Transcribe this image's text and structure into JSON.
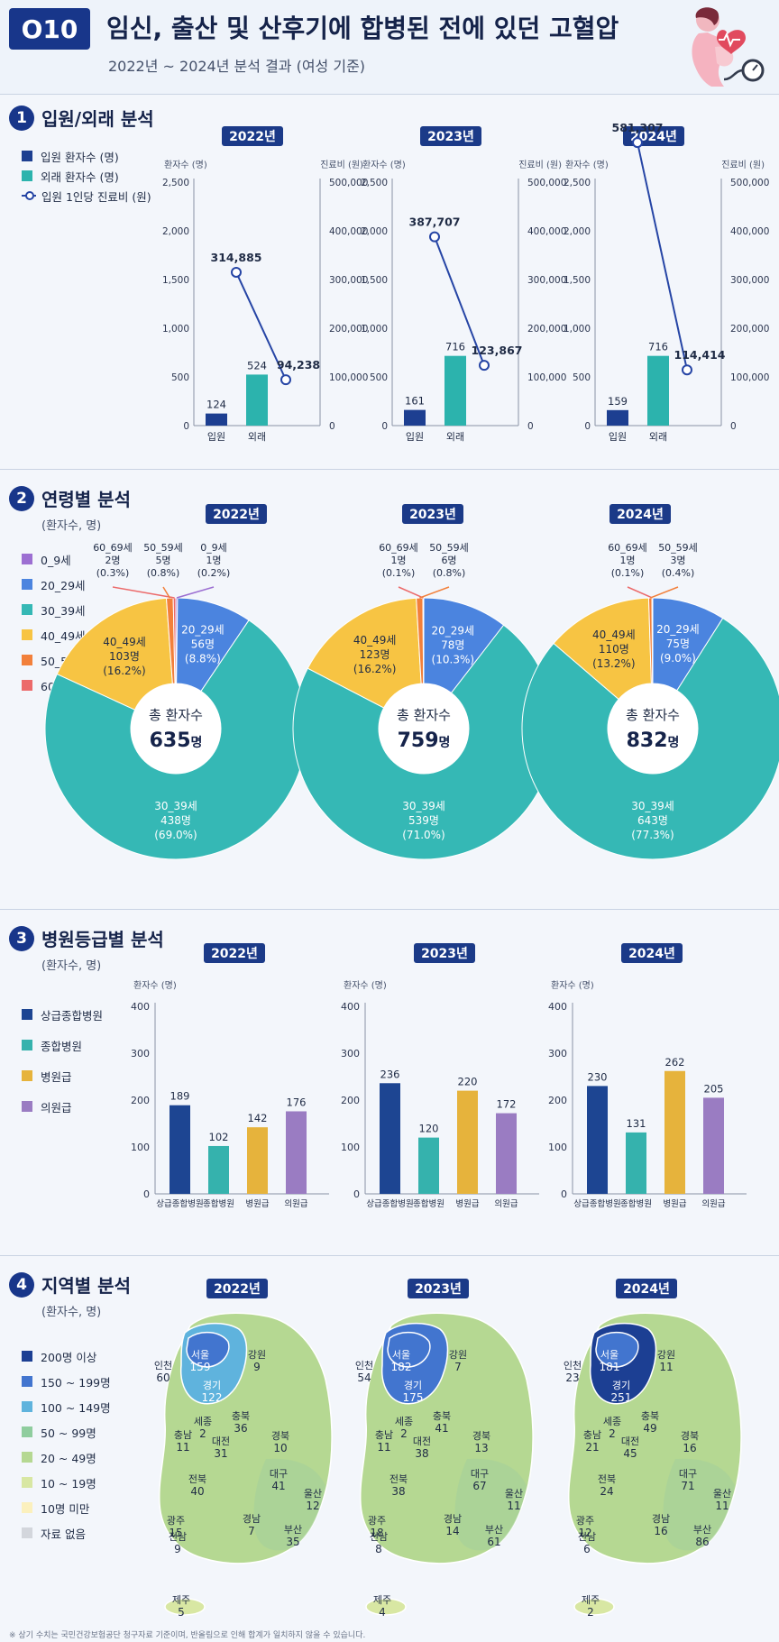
{
  "header": {
    "code": "O10",
    "title": "임신, 출산 및 산후기에 합병된 전에 있던 고혈압",
    "subtitle": "2022년 ~ 2024년 분석 결과 (여성 기준)"
  },
  "sections": {
    "s1": {
      "num": "1",
      "title": "입원/외래 분석"
    },
    "s2": {
      "num": "2",
      "title": "연령별 분석",
      "unit": "(환자수, 명)"
    },
    "s3": {
      "num": "3",
      "title": "병원등급별 분석",
      "unit": "(환자수, 명)"
    },
    "s4": {
      "num": "4",
      "title": "지역별 분석",
      "unit": "(환자수, 명)"
    }
  },
  "legend1": [
    {
      "label": "입원 환자수 (명)",
      "color": "#1d3f91",
      "kind": "box"
    },
    {
      "label": "외래 환자수 (명)",
      "color": "#2cb3ad",
      "kind": "box"
    },
    {
      "label": "입원 1인당 진료비 (원)",
      "color": "#2645a5",
      "kind": "line"
    }
  ],
  "legend2": [
    {
      "label": "0_9세",
      "color": "#9c6fd2"
    },
    {
      "label": "20_29세",
      "color": "#4b84df"
    },
    {
      "label": "30_39세",
      "color": "#35b8b5"
    },
    {
      "label": "40_49세",
      "color": "#f7c443"
    },
    {
      "label": "50_59세",
      "color": "#f2803b"
    },
    {
      "label": "60_69세",
      "color": "#ec6a6a"
    }
  ],
  "legend3": [
    {
      "label": "상급종합병원",
      "color": "#1d4592"
    },
    {
      "label": "종합병원",
      "color": "#35b2ad"
    },
    {
      "label": "병원급",
      "color": "#e6b33c"
    },
    {
      "label": "의원급",
      "color": "#9a7cc2"
    }
  ],
  "legend4": [
    {
      "label": "200명 이상",
      "color": "#1c3f93"
    },
    {
      "label": "150 ~ 199명",
      "color": "#4275cf"
    },
    {
      "label": "100 ~ 149명",
      "color": "#5fb3dd"
    },
    {
      "label": "50 ~ 99명",
      "color": "#8fcd9e"
    },
    {
      "label": "20 ~ 49명",
      "color": "#b5d892"
    },
    {
      "label": "10 ~ 19명",
      "color": "#d8e7a3"
    },
    {
      "label": "10명 미만",
      "color": "#fbf0bd"
    },
    {
      "label": "자료 없음",
      "color": "#d3d6dc"
    }
  ],
  "chart_data": [
    {
      "type": "bar",
      "section": "입원/외래 분석",
      "years": [
        "2022년",
        "2023년",
        "2024년"
      ],
      "categories": [
        "입원",
        "외래"
      ],
      "ylabel_left": "환자수 (명)",
      "ylabel_right": "진료비 (원)",
      "ylim_left": [
        0,
        2500
      ],
      "ylim_right": [
        0,
        500000
      ],
      "yticks_left": [
        "0",
        "500",
        "1,000",
        "1,500",
        "2,000",
        "2,500"
      ],
      "yticks_right": [
        "0",
        "100,000",
        "200,000",
        "300,000",
        "400,000",
        "500,000"
      ],
      "patients": [
        [
          124,
          524
        ],
        [
          161,
          716
        ],
        [
          159,
          716
        ]
      ],
      "patient_labels": [
        [
          "124",
          "524"
        ],
        [
          "161",
          "716"
        ],
        [
          "159",
          "716"
        ]
      ],
      "cost": [
        [
          314885,
          94238
        ],
        [
          387707,
          123867
        ],
        [
          581307,
          114414
        ]
      ],
      "cost_labels": [
        [
          "314,885",
          "94,238"
        ],
        [
          "387,707",
          "123,867"
        ],
        [
          "581,307",
          "114,414"
        ]
      ]
    },
    {
      "type": "pie",
      "section": "연령별 분석",
      "years": [
        "2022년",
        "2023년",
        "2024년"
      ],
      "center_label": "총 환자수",
      "totals": [
        "635",
        "759",
        "832"
      ],
      "total_unit": "명",
      "slices": [
        [
          {
            "age": "0_9세",
            "count": "1명",
            "pct": "(0.2%)",
            "value": 0.2
          },
          {
            "age": "20_29세",
            "count": "56명",
            "pct": "(8.8%)",
            "value": 8.8
          },
          {
            "age": "30_39세",
            "count": "438명",
            "pct": "(69.0%)",
            "value": 69.0
          },
          {
            "age": "40_49세",
            "count": "103명",
            "pct": "(16.2%)",
            "value": 16.2
          },
          {
            "age": "50_59세",
            "count": "5명",
            "pct": "(0.8%)",
            "value": 0.8
          },
          {
            "age": "60_69세",
            "count": "2명",
            "pct": "(0.3%)",
            "value": 0.3
          }
        ],
        [
          {
            "age": "20_29세",
            "count": "78명",
            "pct": "(10.3%)",
            "value": 10.3
          },
          {
            "age": "30_39세",
            "count": "539명",
            "pct": "(71.0%)",
            "value": 71.0
          },
          {
            "age": "40_49세",
            "count": "123명",
            "pct": "(16.2%)",
            "value": 16.2
          },
          {
            "age": "50_59세",
            "count": "6명",
            "pct": "(0.8%)",
            "value": 0.8
          },
          {
            "age": "60_69세",
            "count": "1명",
            "pct": "(0.1%)",
            "value": 0.1
          }
        ],
        [
          {
            "age": "20_29세",
            "count": "75명",
            "pct": "(9.0%)",
            "value": 9.0
          },
          {
            "age": "30_39세",
            "count": "643명",
            "pct": "(77.3%)",
            "value": 77.3
          },
          {
            "age": "40_49세",
            "count": "110명",
            "pct": "(13.2%)",
            "value": 13.2
          },
          {
            "age": "50_59세",
            "count": "3명",
            "pct": "(0.4%)",
            "value": 0.4
          },
          {
            "age": "60_69세",
            "count": "1명",
            "pct": "(0.1%)",
            "value": 0.1
          }
        ]
      ]
    },
    {
      "type": "bar",
      "section": "병원등급별 분석",
      "years": [
        "2022년",
        "2023년",
        "2024년"
      ],
      "ylabel": "환자수 (명)",
      "ylim": [
        0,
        400
      ],
      "yticks": [
        "0",
        "100",
        "200",
        "300",
        "400"
      ],
      "categories": [
        "상급종합병원",
        "종합병원",
        "병원급",
        "의원급"
      ],
      "values": [
        [
          189,
          102,
          142,
          176
        ],
        [
          236,
          120,
          220,
          172
        ],
        [
          230,
          131,
          262,
          205
        ]
      ]
    },
    {
      "type": "map",
      "section": "지역별 분석",
      "years": [
        "2022년",
        "2023년",
        "2024년"
      ],
      "regions": [
        [
          {
            "name": "서울",
            "value": "159",
            "color": "#4275cf"
          },
          {
            "name": "경기",
            "value": "122",
            "color": "#5fb3dd"
          },
          {
            "name": "인천",
            "value": "60",
            "color": "#8fcd9e"
          },
          {
            "name": "강원",
            "value": "9",
            "color": "#fbf0bd"
          },
          {
            "name": "세종",
            "value": "2",
            "color": "#fbf0bd"
          },
          {
            "name": "충북",
            "value": "36",
            "color": "#b5d892"
          },
          {
            "name": "충남",
            "value": "11",
            "color": "#d8e7a3"
          },
          {
            "name": "대전",
            "value": "31",
            "color": "#b5d892"
          },
          {
            "name": "경북",
            "value": "10",
            "color": "#d8e7a3"
          },
          {
            "name": "전북",
            "value": "40",
            "color": "#b5d892"
          },
          {
            "name": "대구",
            "value": "41",
            "color": "#b5d892"
          },
          {
            "name": "울산",
            "value": "12",
            "color": "#d8e7a3"
          },
          {
            "name": "광주",
            "value": "15",
            "color": "#d8e7a3"
          },
          {
            "name": "경남",
            "value": "7",
            "color": "#fbf0bd"
          },
          {
            "name": "부산",
            "value": "35",
            "color": "#b5d892"
          },
          {
            "name": "전남",
            "value": "9",
            "color": "#fbf0bd"
          },
          {
            "name": "제주",
            "value": "5",
            "color": "#fbf0bd"
          }
        ],
        [
          {
            "name": "서울",
            "value": "182",
            "color": "#4275cf"
          },
          {
            "name": "경기",
            "value": "175",
            "color": "#4275cf"
          },
          {
            "name": "인천",
            "value": "54",
            "color": "#8fcd9e"
          },
          {
            "name": "강원",
            "value": "7",
            "color": "#fbf0bd"
          },
          {
            "name": "세종",
            "value": "2",
            "color": "#fbf0bd"
          },
          {
            "name": "충북",
            "value": "41",
            "color": "#b5d892"
          },
          {
            "name": "충남",
            "value": "11",
            "color": "#d8e7a3"
          },
          {
            "name": "대전",
            "value": "38",
            "color": "#b5d892"
          },
          {
            "name": "경북",
            "value": "13",
            "color": "#d8e7a3"
          },
          {
            "name": "전북",
            "value": "38",
            "color": "#b5d892"
          },
          {
            "name": "대구",
            "value": "67",
            "color": "#8fcd9e"
          },
          {
            "name": "울산",
            "value": "11",
            "color": "#d8e7a3"
          },
          {
            "name": "광주",
            "value": "18",
            "color": "#d8e7a3"
          },
          {
            "name": "경남",
            "value": "14",
            "color": "#d8e7a3"
          },
          {
            "name": "부산",
            "value": "61",
            "color": "#8fcd9e"
          },
          {
            "name": "전남",
            "value": "8",
            "color": "#fbf0bd"
          },
          {
            "name": "제주",
            "value": "4",
            "color": "#fbf0bd"
          }
        ],
        [
          {
            "name": "서울",
            "value": "181",
            "color": "#4275cf"
          },
          {
            "name": "경기",
            "value": "251",
            "color": "#1c3f93"
          },
          {
            "name": "인천",
            "value": "23",
            "color": "#b5d892"
          },
          {
            "name": "강원",
            "value": "11",
            "color": "#d8e7a3"
          },
          {
            "name": "세종",
            "value": "2",
            "color": "#fbf0bd"
          },
          {
            "name": "충북",
            "value": "49",
            "color": "#b5d892"
          },
          {
            "name": "충남",
            "value": "21",
            "color": "#b5d892"
          },
          {
            "name": "대전",
            "value": "45",
            "color": "#b5d892"
          },
          {
            "name": "경북",
            "value": "16",
            "color": "#d8e7a3"
          },
          {
            "name": "전북",
            "value": "24",
            "color": "#b5d892"
          },
          {
            "name": "대구",
            "value": "71",
            "color": "#8fcd9e"
          },
          {
            "name": "울산",
            "value": "11",
            "color": "#d8e7a3"
          },
          {
            "name": "광주",
            "value": "12",
            "color": "#d8e7a3"
          },
          {
            "name": "경남",
            "value": "16",
            "color": "#d8e7a3"
          },
          {
            "name": "부산",
            "value": "86",
            "color": "#8fcd9e"
          },
          {
            "name": "전남",
            "value": "6",
            "color": "#fbf0bd"
          },
          {
            "name": "제주",
            "value": "2",
            "color": "#fbf0bd"
          }
        ]
      ]
    }
  ],
  "footnote": "※ 상기 수치는 국민건강보험공단 청구자료 기준이며, 반올림으로 인해 합계가 일치하지 않을 수 있습니다."
}
